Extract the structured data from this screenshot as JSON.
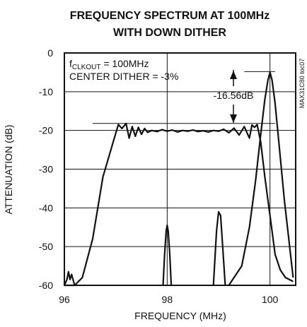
{
  "chart_data": {
    "type": "line",
    "title_line1": "FREQUENCY SPECTRUM AT 100MHz",
    "title_line2": "WITH DOWN DITHER",
    "xlabel": "FREQUENCY (MHz)",
    "ylabel": "ATTENUATION (dB)",
    "xlim": [
      96,
      100.5
    ],
    "ylim": [
      -60,
      0
    ],
    "xticks": [
      96,
      98,
      100
    ],
    "yticks": [
      0,
      -10,
      -20,
      -30,
      -40,
      -50,
      -60
    ],
    "grid": true,
    "annotation_clk_prefix": "f",
    "annotation_clk_sub": "CLKOUT",
    "annotation_clk_value": " = 100MHz",
    "annotation_dither": "CENTER DITHER = -3%",
    "annotation_delta": "-16.56dB",
    "side_note": "MAX31C80 toc07",
    "series": [
      {
        "description": "dithered spectrum",
        "x": [
          96.0,
          96.2,
          96.35,
          96.55,
          96.75,
          96.95,
          97.05,
          97.12,
          97.2,
          97.26,
          97.32,
          97.38,
          97.44,
          97.5,
          97.56,
          97.62,
          97.7,
          97.8,
          97.9,
          98.0,
          98.1,
          98.2,
          98.3,
          98.4,
          98.5,
          98.6,
          98.7,
          98.8,
          98.9,
          99.0,
          99.1,
          99.2,
          99.3,
          99.4,
          99.5,
          99.6,
          99.65,
          99.7,
          99.75,
          99.82,
          99.9,
          100.0,
          100.1,
          100.2,
          100.3,
          100.45
        ],
        "y": [
          -62,
          -60,
          -58,
          -48,
          -32,
          -23,
          -18.5,
          -19.5,
          -18.2,
          -22,
          -19,
          -21.5,
          -19.2,
          -21,
          -19.5,
          -20.5,
          -20,
          -20.3,
          -19.8,
          -20.2,
          -19.9,
          -20.4,
          -20,
          -20.2,
          -19.9,
          -20.3,
          -20.1,
          -20.4,
          -20,
          -20.2,
          -19.7,
          -20.6,
          -19.4,
          -21.2,
          -19,
          -22,
          -18.6,
          -19.2,
          -18.5,
          -23,
          -32,
          -42,
          -52,
          -56,
          -58,
          -59
        ]
      },
      {
        "description": "carrier without dither",
        "x": [
          99.2,
          99.45,
          99.6,
          99.72,
          99.82,
          99.9,
          99.96,
          100.0,
          100.04,
          100.1,
          100.18,
          100.28,
          100.4,
          100.45
        ],
        "y": [
          -61,
          -55,
          -45,
          -33,
          -21,
          -12,
          -7,
          -5,
          -7,
          -13,
          -24,
          -38,
          -52,
          -58
        ]
      },
      {
        "description": "spur near 98 MHz",
        "x": [
          97.92,
          97.95,
          97.98,
          98.0,
          98.02,
          98.05,
          98.08
        ],
        "y": [
          -61,
          -52,
          -46,
          -44.5,
          -46,
          -52,
          -61
        ]
      },
      {
        "description": "spur near 99 MHz",
        "x": [
          98.9,
          98.96,
          99.0,
          99.04,
          99.08,
          99.13
        ],
        "y": [
          -61,
          -46,
          -41,
          -42,
          -50,
          -61
        ]
      },
      {
        "description": "low-frequency floor peak",
        "x": [
          96.0,
          96.05,
          96.08,
          96.11,
          96.14,
          96.2
        ],
        "y": [
          -60,
          -58.5,
          -56.5,
          -58.5,
          -57.2,
          -60
        ]
      }
    ],
    "reference_levels": [
      {
        "name": "dither-peak-level",
        "y": -18.2,
        "x_start": 96.55,
        "x_end": 100.1
      },
      {
        "name": "carrier-peak-level",
        "y": -4.8,
        "x_start": 99.5,
        "x_end": 100.1
      }
    ]
  }
}
